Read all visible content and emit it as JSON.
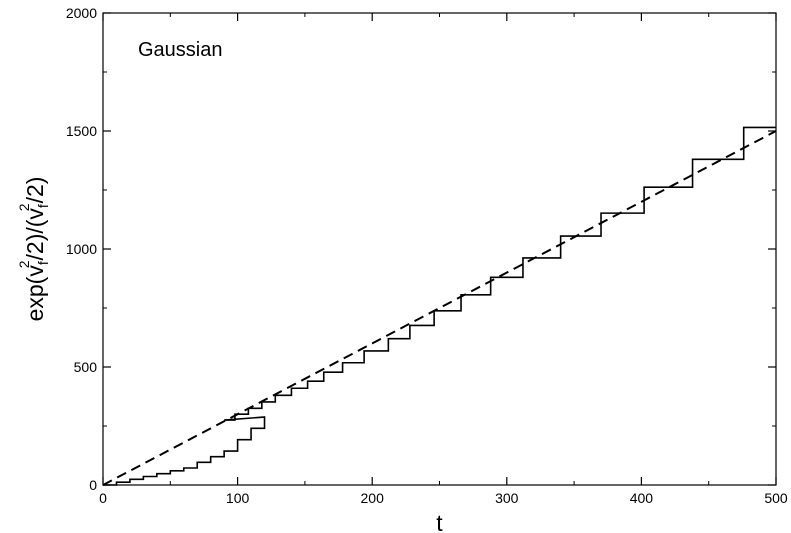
{
  "chart_data": {
    "type": "line",
    "title": "",
    "xlabel": "t",
    "ylabel": "exp(v_f^2/2)/(v_f^2/2)",
    "ylabel_parts": {
      "pre": "exp(v",
      "sub1": "f",
      "sup1": "2",
      "mid": "/2)/(v",
      "sub2": "f",
      "sup2": "2",
      "post": "/2)"
    },
    "annotation": "Gaussian",
    "xlim": [
      0,
      500
    ],
    "ylim": [
      0,
      2000
    ],
    "x_major_ticks": [
      0,
      100,
      200,
      300,
      400,
      500
    ],
    "x_tick_labels": [
      "0",
      "100",
      "200",
      "300",
      "400",
      "500"
    ],
    "y_major_ticks": [
      0,
      500,
      1000,
      1500,
      2000
    ],
    "y_tick_labels": [
      "0",
      "500",
      "1000",
      "1500",
      "2000"
    ],
    "x_minor_step": 50,
    "y_minor_step": 250,
    "grid": false,
    "series": [
      {
        "style": "solid",
        "color": "#000000",
        "points": [
          [
            0,
            0
          ],
          [
            10,
            0
          ],
          [
            10,
            12
          ],
          [
            20,
            12
          ],
          [
            20,
            24
          ],
          [
            30,
            24
          ],
          [
            30,
            36
          ],
          [
            40,
            36
          ],
          [
            40,
            48
          ],
          [
            50,
            48
          ],
          [
            50,
            60
          ],
          [
            60,
            60
          ],
          [
            60,
            72
          ],
          [
            70,
            72
          ],
          [
            70,
            96
          ],
          [
            80,
            96
          ],
          [
            80,
            120
          ],
          [
            90,
            120
          ],
          [
            90,
            144
          ],
          [
            100,
            144
          ],
          [
            100,
            192
          ],
          [
            110,
            192
          ],
          [
            110,
            240
          ],
          [
            120,
            240
          ],
          [
            120,
            288
          ],
          [
            90,
            275
          ],
          [
            98,
            275
          ],
          [
            98,
            300
          ],
          [
            108,
            300
          ],
          [
            108,
            325
          ],
          [
            118,
            325
          ],
          [
            118,
            352
          ],
          [
            128,
            352
          ],
          [
            128,
            380
          ],
          [
            140,
            380
          ],
          [
            140,
            410
          ],
          [
            152,
            410
          ],
          [
            152,
            440
          ],
          [
            164,
            440
          ],
          [
            164,
            478
          ],
          [
            178,
            478
          ],
          [
            178,
            518
          ],
          [
            194,
            518
          ],
          [
            194,
            568
          ],
          [
            212,
            568
          ],
          [
            212,
            620
          ],
          [
            228,
            620
          ],
          [
            228,
            676
          ],
          [
            246,
            676
          ],
          [
            246,
            738
          ],
          [
            266,
            738
          ],
          [
            266,
            806
          ],
          [
            288,
            806
          ],
          [
            288,
            880
          ],
          [
            312,
            880
          ],
          [
            312,
            962
          ],
          [
            340,
            962
          ],
          [
            340,
            1055
          ],
          [
            370,
            1055
          ],
          [
            370,
            1152
          ],
          [
            402,
            1152
          ],
          [
            402,
            1262
          ],
          [
            438,
            1262
          ],
          [
            438,
            1380
          ],
          [
            476,
            1380
          ],
          [
            476,
            1515
          ],
          [
            500,
            1515
          ]
        ]
      },
      {
        "style": "dashed",
        "color": "#000000",
        "points": [
          [
            0,
            0
          ],
          [
            500,
            1500
          ]
        ]
      }
    ]
  }
}
